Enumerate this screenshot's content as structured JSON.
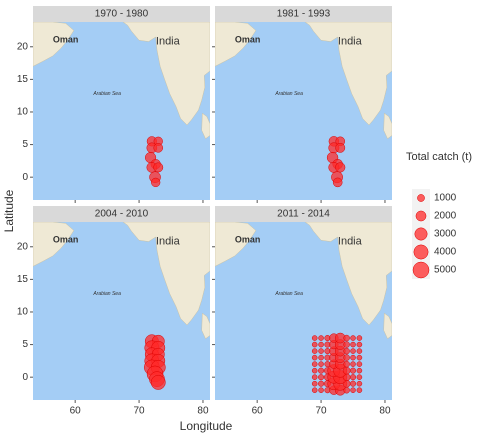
{
  "chart_data": {
    "type": "scatter",
    "x_label": "Longitude",
    "y_label": "Latitude",
    "xlim": [
      53.4,
      81.1
    ],
    "ylim": [
      -3.5,
      23.8
    ],
    "xticks": [
      60,
      70,
      80
    ],
    "yticks": [
      0,
      5,
      10,
      15,
      20
    ],
    "color": "#ff2a2a",
    "map_labels": [
      "Oman",
      "India",
      "Arabian Sea"
    ],
    "legend": {
      "title": "Total catch (t)",
      "sizes": [
        1000,
        2000,
        3000,
        4000,
        5000
      ]
    },
    "facets": [
      {
        "title": "1970 - 1980",
        "x": [
          72,
          73,
          72,
          73,
          71.8,
          72.6,
          72,
          73,
          72.5,
          72.6
        ],
        "y": [
          5.5,
          5.5,
          4.5,
          4.5,
          3,
          2,
          1.5,
          1.5,
          0,
          -0.8
        ],
        "sizes": [
          1800,
          1500,
          2000,
          1600,
          2200,
          1800,
          2000,
          1700,
          2400,
          1500
        ]
      },
      {
        "title": "1981 - 1993",
        "x": [
          72,
          73,
          72,
          73,
          71.8,
          72.6,
          72,
          73,
          72.5,
          72.6
        ],
        "y": [
          5.5,
          5.5,
          4.5,
          4.5,
          3,
          2,
          1.5,
          1.5,
          0,
          -0.8
        ],
        "sizes": [
          1900,
          1600,
          2100,
          1700,
          2300,
          1900,
          2100,
          1800,
          2500,
          1600
        ]
      },
      {
        "title": "2004 - 2010",
        "x": [
          72,
          73,
          72,
          73,
          72,
          73,
          72,
          73,
          72,
          73,
          72.5,
          72.8,
          73
        ],
        "y": [
          5.5,
          5.5,
          4.5,
          4.5,
          3.5,
          3.5,
          2.5,
          2.5,
          1.5,
          1.5,
          0.5,
          -0.3,
          -0.8
        ],
        "sizes": [
          3500,
          3000,
          4000,
          3500,
          3500,
          3000,
          4000,
          3500,
          4500,
          4000,
          5000,
          4500,
          4000
        ]
      },
      {
        "title": "2011 - 2014",
        "x": [
          69,
          70,
          71,
          72,
          73,
          74,
          75,
          76,
          69,
          70,
          71,
          72,
          73,
          74,
          75,
          76,
          69,
          70,
          71,
          72,
          73,
          74,
          75,
          76,
          69,
          70,
          71,
          72,
          73,
          74,
          75,
          76,
          69,
          70,
          71,
          72,
          73,
          74,
          75,
          76,
          69,
          70,
          71,
          72,
          73,
          74,
          75,
          76,
          69,
          70,
          71,
          72,
          73,
          74,
          75,
          76,
          69,
          70,
          71,
          72,
          73,
          74,
          75,
          76,
          69,
          70,
          71,
          72,
          73,
          74,
          75,
          76
        ],
        "y": [
          -2,
          -2,
          -2,
          -2,
          -2,
          -2,
          -2,
          -2,
          -1,
          -1,
          -1,
          -1,
          -1,
          -1,
          -1,
          -1,
          0,
          0,
          0,
          0,
          0,
          0,
          0,
          0,
          1,
          1,
          1,
          1,
          1,
          1,
          1,
          1,
          2,
          2,
          2,
          2,
          2,
          2,
          2,
          2,
          3,
          3,
          3,
          3,
          3,
          3,
          3,
          3,
          4,
          4,
          4,
          4,
          4,
          4,
          4,
          4,
          5,
          5,
          5,
          5,
          5,
          5,
          5,
          5,
          6,
          6,
          6,
          6,
          6,
          6,
          6,
          6
        ],
        "sizes": [
          500,
          500,
          600,
          1500,
          2000,
          700,
          500,
          500,
          500,
          600,
          800,
          3000,
          3500,
          1000,
          600,
          500,
          500,
          600,
          800,
          3000,
          3500,
          1000,
          600,
          500,
          500,
          600,
          800,
          3000,
          3500,
          1000,
          600,
          500,
          500,
          500,
          600,
          1500,
          2000,
          700,
          500,
          500,
          500,
          500,
          600,
          1500,
          2000,
          700,
          500,
          500,
          500,
          500,
          600,
          1500,
          2000,
          700,
          500,
          500,
          500,
          500,
          600,
          1500,
          2000,
          700,
          500,
          500,
          500,
          500,
          600,
          1500,
          2000,
          700,
          500,
          500
        ]
      }
    ]
  }
}
